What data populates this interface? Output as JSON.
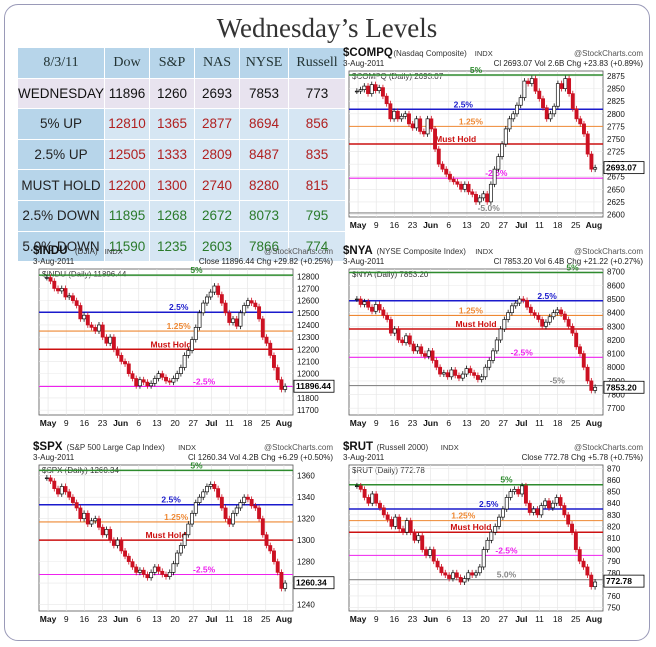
{
  "title": "Wednesday’s Levels",
  "table": {
    "corner": "8/3/11",
    "columns": [
      "Dow",
      "S&P",
      "NAS",
      "NYSE",
      "Russell"
    ],
    "rows": [
      {
        "label": "WEDNESDAY",
        "values": [
          "11896",
          "1260",
          "2693",
          "7853",
          "773"
        ],
        "tone": "wed"
      },
      {
        "label": "5% UP",
        "values": [
          "12810",
          "1365",
          "2877",
          "8694",
          "856"
        ],
        "tone": "up"
      },
      {
        "label": "2.5% UP",
        "values": [
          "12505",
          "1333",
          "2809",
          "8487",
          "835"
        ],
        "tone": "up"
      },
      {
        "label": "MUST HOLD",
        "values": [
          "12200",
          "1300",
          "2740",
          "8280",
          "815"
        ],
        "tone": "mh"
      },
      {
        "label": "2.5% DOWN",
        "values": [
          "11895",
          "1268",
          "2672",
          "8073",
          "795"
        ],
        "tone": "dn"
      },
      {
        "label": "5.0% DOWN",
        "values": [
          "11590",
          "1235",
          "2603",
          "7866",
          "774"
        ],
        "tone": "dn"
      }
    ]
  },
  "colors": {
    "green": "#2e8b2e",
    "blue": "#1a1acc",
    "orange": "#ee8833",
    "red": "#cc1111",
    "magenta": "#ee22ee",
    "gray": "#888888",
    "up_bar": "#111111",
    "down_bar": "#cc1122",
    "table_header": "#b7d5ea",
    "table_cell": "#d6e6f3"
  },
  "chart_data": [
    {
      "type": "bar",
      "id": "compq",
      "symbol": "$COMPQ",
      "name": "(Nasdaq Composite)",
      "index_tag": "INDX",
      "source": "@StockCharts.com",
      "date": "3-Aug-2011",
      "quote": "Cl 2693.07  Vol 2.6B  Chg +23.83 (+0.89%)",
      "quote_dir": "up",
      "legend": "$COMPQ (Daily) 2693.07",
      "last_label": "2693.07",
      "last": 2693.07,
      "ylim": [
        2595,
        2885
      ],
      "yticks": [
        2600,
        2625,
        2650,
        2675,
        2700,
        2725,
        2750,
        2775,
        2800,
        2825,
        2850,
        2875
      ],
      "x_labels": [
        "May",
        "9",
        "16",
        "23",
        "Jun",
        "6",
        "13",
        "20",
        "27",
        "Jul",
        "11",
        "18",
        "25",
        "Aug"
      ],
      "levels": [
        {
          "label": "5%",
          "value": 2877,
          "color": "green",
          "pos": 0.5
        },
        {
          "label": "2.5%",
          "value": 2809,
          "color": "blue",
          "pos": 0.45
        },
        {
          "label": "1.25%",
          "value": 2775,
          "color": "orange",
          "pos": 0.48
        },
        {
          "label": "Must Hold",
          "value": 2740,
          "color": "red",
          "pos": 0.42
        },
        {
          "label": "-2.5%",
          "value": 2672,
          "color": "magenta",
          "pos": 0.58
        },
        {
          "label": "-5.0%",
          "value": 2603,
          "color": "gray",
          "pos": 0.55
        }
      ],
      "closes": [
        2845,
        2848,
        2855,
        2840,
        2858,
        2846,
        2852,
        2835,
        2820,
        2790,
        2805,
        2790,
        2795,
        2800,
        2780,
        2772,
        2790,
        2765,
        2760,
        2790,
        2770,
        2730,
        2700,
        2690,
        2680,
        2670,
        2665,
        2660,
        2650,
        2660,
        2645,
        2640,
        2625,
        2633,
        2641,
        2625,
        2660,
        2690,
        2715,
        2740,
        2770,
        2790,
        2800,
        2817,
        2832,
        2865,
        2860,
        2870,
        2845,
        2830,
        2812,
        2790,
        2800,
        2815,
        2860,
        2850,
        2870,
        2840,
        2810,
        2790,
        2780,
        2760,
        2720,
        2690,
        2693
      ]
    },
    {
      "type": "bar",
      "id": "indu",
      "symbol": "$INDU",
      "name": "(DJIA)",
      "index_tag": "INDX",
      "source": "@StockCharts.com",
      "date": "3-Aug-2011",
      "quote": "Close 11896.44  Chg +29.82 (+0.25%)",
      "quote_dir": "up",
      "legend": "$INDU (Daily) 11896.44",
      "last_label": "11896.44",
      "last": 11896.44,
      "ylim": [
        11660,
        12860
      ],
      "yticks": [
        11700,
        11800,
        11900,
        12000,
        12100,
        12200,
        12300,
        12400,
        12500,
        12600,
        12700,
        12800
      ],
      "x_labels": [
        "May",
        "9",
        "16",
        "23",
        "Jun",
        "6",
        "13",
        "20",
        "27",
        "Jul",
        "11",
        "18",
        "25",
        "Aug"
      ],
      "levels": [
        {
          "label": "5%",
          "value": 12810,
          "color": "green",
          "pos": 0.62
        },
        {
          "label": "2.5%",
          "value": 12505,
          "color": "blue",
          "pos": 0.55
        },
        {
          "label": "1.25%",
          "value": 12350,
          "color": "orange",
          "pos": 0.55
        },
        {
          "label": "Must Hold",
          "value": 12200,
          "color": "red",
          "pos": 0.52
        },
        {
          "label": "-2.5%",
          "value": 11895,
          "color": "magenta",
          "pos": 0.65
        }
      ],
      "closes": [
        12790,
        12760,
        12700,
        12680,
        12700,
        12630,
        12640,
        12600,
        12560,
        12450,
        12480,
        12400,
        12380,
        12350,
        12400,
        12300,
        12250,
        12300,
        12200,
        12150,
        12100,
        12080,
        12000,
        11960,
        11900,
        11950,
        11930,
        11900,
        11920,
        11960,
        12000,
        11970,
        11940,
        11930,
        11960,
        12000,
        12050,
        12150,
        12190,
        12280,
        12380,
        12500,
        12580,
        12630,
        12670,
        12720,
        12650,
        12580,
        12500,
        12420,
        12450,
        12390,
        12500,
        12560,
        12600,
        12580,
        12550,
        12450,
        12300,
        12250,
        12150,
        12050,
        11950,
        11870,
        11896
      ]
    },
    {
      "type": "bar",
      "id": "nya",
      "symbol": "$NYA",
      "name": "(NYSE Composite Index)",
      "index_tag": "INDX",
      "source": "@StockCharts.com",
      "date": "3-Aug-2011",
      "quote": "Cl 7853.20  Vol 6.4B  Chg +21.22 (+0.27%)",
      "quote_dir": "up",
      "legend": "$NYA (Daily) 7853.20",
      "last_label": "7853.20",
      "last": 7853.2,
      "ylim": [
        7650,
        8720
      ],
      "yticks": [
        7700,
        7800,
        7900,
        8000,
        8100,
        8200,
        8300,
        8400,
        8500,
        8600,
        8700
      ],
      "x_labels": [
        "May",
        "9",
        "16",
        "23",
        "Jun",
        "6",
        "13",
        "20",
        "27",
        "Jul",
        "11",
        "18",
        "25",
        "Aug"
      ],
      "levels": [
        {
          "label": "5%",
          "value": 8694,
          "color": "green",
          "pos": 0.88
        },
        {
          "label": "2.5%",
          "value": 8487,
          "color": "blue",
          "pos": 0.78
        },
        {
          "label": "1.25%",
          "value": 8380,
          "color": "orange",
          "pos": 0.48
        },
        {
          "label": "Must Hold",
          "value": 8280,
          "color": "red",
          "pos": 0.5
        },
        {
          "label": "-2.5%",
          "value": 8073,
          "color": "magenta",
          "pos": 0.68
        },
        {
          "label": "-5%",
          "value": 7866,
          "color": "gray",
          "pos": 0.82
        }
      ],
      "closes": [
        8500,
        8460,
        8480,
        8440,
        8410,
        8460,
        8420,
        8380,
        8350,
        8250,
        8280,
        8200,
        8180,
        8230,
        8170,
        8120,
        8150,
        8100,
        8080,
        8120,
        8050,
        8000,
        7950,
        7960,
        7930,
        7980,
        7940,
        7920,
        7950,
        7990,
        7960,
        7940,
        7910,
        7930,
        8000,
        8050,
        8120,
        8200,
        8280,
        8350,
        8400,
        8450,
        8470,
        8500,
        8490,
        8440,
        8400,
        8380,
        8350,
        8300,
        8330,
        8370,
        8400,
        8420,
        8390,
        8350,
        8300,
        8250,
        8150,
        8100,
        8000,
        7900,
        7830,
        7853
      ]
    },
    {
      "type": "bar",
      "id": "spx",
      "symbol": "$SPX",
      "name": "(S&P 500 Large Cap Index)",
      "index_tag": "INDX",
      "source": "@StockCharts.com",
      "date": "3-Aug-2011",
      "quote": "Cl 1260.34  Vol 4.2B  Chg +6.29 (+0.50%)",
      "quote_dir": "up",
      "legend": "$SPX (Daily) 1260.34",
      "last_label": "1260.34",
      "last": 1260.34,
      "ylim": [
        1234,
        1370
      ],
      "yticks": [
        1240,
        1260,
        1280,
        1300,
        1320,
        1340,
        1360
      ],
      "x_labels": [
        "May",
        "9",
        "16",
        "23",
        "Jun",
        "6",
        "13",
        "20",
        "27",
        "Jul",
        "11",
        "18",
        "25",
        "Aug"
      ],
      "levels": [
        {
          "label": "5%",
          "value": 1365,
          "color": "green",
          "pos": 0.62
        },
        {
          "label": "2.5%",
          "value": 1333,
          "color": "blue",
          "pos": 0.52
        },
        {
          "label": "1.25%",
          "value": 1317,
          "color": "orange",
          "pos": 0.54
        },
        {
          "label": "Must Hold",
          "value": 1300,
          "color": "red",
          "pos": 0.5
        },
        {
          "label": "-2.5%",
          "value": 1268,
          "color": "magenta",
          "pos": 0.65
        }
      ],
      "closes": [
        1358,
        1355,
        1348,
        1343,
        1350,
        1345,
        1340,
        1335,
        1330,
        1320,
        1325,
        1315,
        1318,
        1320,
        1312,
        1305,
        1310,
        1300,
        1295,
        1300,
        1290,
        1285,
        1280,
        1275,
        1270,
        1272,
        1268,
        1265,
        1270,
        1275,
        1271,
        1268,
        1266,
        1270,
        1278,
        1288,
        1295,
        1305,
        1315,
        1325,
        1335,
        1340,
        1345,
        1350,
        1352,
        1348,
        1340,
        1330,
        1320,
        1315,
        1325,
        1330,
        1335,
        1340,
        1338,
        1332,
        1330,
        1320,
        1305,
        1295,
        1290,
        1280,
        1270,
        1255,
        1260
      ]
    },
    {
      "type": "bar",
      "id": "rut",
      "symbol": "$RUT",
      "name": "(Russell 2000)",
      "index_tag": "INDX",
      "source": "@StockCharts.com",
      "date": "3-Aug-2011",
      "quote": "Close 772.78  Chg +5.78 (+0.75%)",
      "quote_dir": "up",
      "legend": "$RUT (Daily) 772.78",
      "last_label": "772.78",
      "last": 772.78,
      "ylim": [
        747,
        873
      ],
      "yticks": [
        750,
        760,
        770,
        780,
        790,
        800,
        810,
        820,
        830,
        840,
        850,
        860,
        870
      ],
      "x_labels": [
        "May",
        "9",
        "16",
        "23",
        "Jun",
        "6",
        "13",
        "20",
        "27",
        "Jul",
        "11",
        "18",
        "25",
        "Aug"
      ],
      "levels": [
        {
          "label": "5%",
          "value": 856,
          "color": "green",
          "pos": 0.62
        },
        {
          "label": "2.5%",
          "value": 835,
          "color": "blue",
          "pos": 0.55
        },
        {
          "label": "1.25%",
          "value": 825,
          "color": "orange",
          "pos": 0.45
        },
        {
          "label": "Must Hold",
          "value": 815,
          "color": "red",
          "pos": 0.48
        },
        {
          "label": "-2.5%",
          "value": 795,
          "color": "magenta",
          "pos": 0.62
        },
        {
          "label": "5.0%",
          "value": 774,
          "color": "gray",
          "pos": 0.62
        }
      ],
      "closes": [
        855,
        852,
        845,
        840,
        848,
        840,
        836,
        830,
        826,
        820,
        828,
        818,
        815,
        825,
        815,
        808,
        812,
        800,
        795,
        800,
        790,
        785,
        780,
        778,
        775,
        780,
        776,
        772,
        775,
        780,
        778,
        780,
        785,
        800,
        808,
        815,
        820,
        828,
        835,
        845,
        850,
        852,
        848,
        855,
        840,
        832,
        835,
        830,
        838,
        842,
        836,
        840,
        845,
        838,
        830,
        822,
        815,
        800,
        790,
        785,
        778,
        768,
        772
      ]
    }
  ]
}
